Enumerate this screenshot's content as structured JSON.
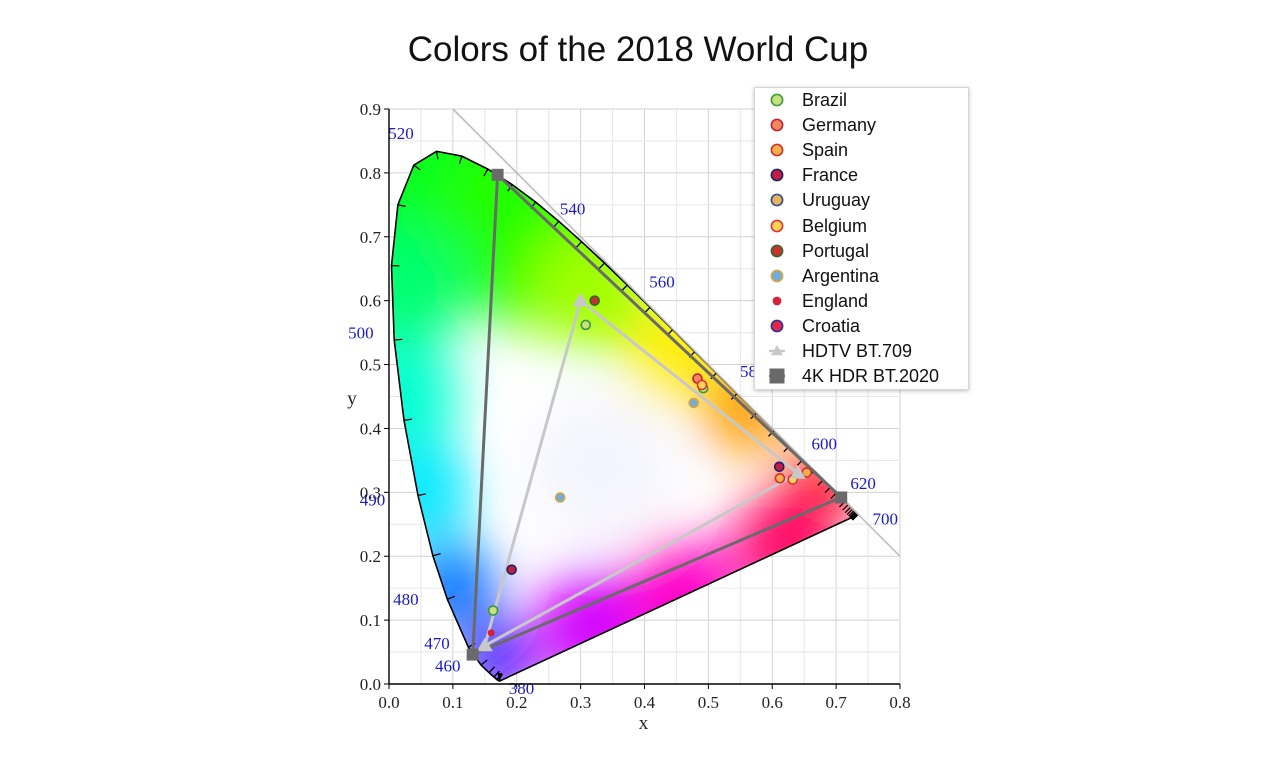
{
  "chart_data": {
    "type": "scatter",
    "title": "Colors of the 2018 World Cup",
    "xlabel": "x",
    "ylabel": "y",
    "xlim": [
      0.0,
      0.8
    ],
    "ylim": [
      0.0,
      0.9
    ],
    "grid": true,
    "legend_position": "top-right",
    "x_ticks": [
      "0.0",
      "0.1",
      "0.2",
      "0.3",
      "0.4",
      "0.5",
      "0.6",
      "0.7",
      "0.8"
    ],
    "y_ticks": [
      "0.0",
      "0.1",
      "0.2",
      "0.3",
      "0.4",
      "0.5",
      "0.6",
      "0.7",
      "0.8",
      "0.9"
    ],
    "wavelength_labels": [
      {
        "text": "380",
        "x": 0.175,
        "y": -0.003
      },
      {
        "text": "460",
        "x": 0.144,
        "y": 0.026
      },
      {
        "text": "470",
        "x": 0.124,
        "y": 0.058
      },
      {
        "text": "480",
        "x": 0.091,
        "y": 0.133
      },
      {
        "text": "490",
        "x": 0.045,
        "y": 0.295
      },
      {
        "text": "500",
        "x": 0.008,
        "y": 0.538
      },
      {
        "text": "520",
        "x": 0.074,
        "y": 0.834
      },
      {
        "text": "540",
        "x": 0.23,
        "y": 0.754
      },
      {
        "text": "560",
        "x": 0.373,
        "y": 0.624
      },
      {
        "text": "580",
        "x": 0.512,
        "y": 0.487
      },
      {
        "text": "600",
        "x": 0.627,
        "y": 0.373
      },
      {
        "text": "620",
        "x": 0.691,
        "y": 0.308
      },
      {
        "text": "700",
        "x": 0.735,
        "y": 0.265
      }
    ],
    "series": [
      {
        "name": "Brazil",
        "marker": "circle",
        "color": "#c9e080",
        "edge": "#3a9a3a",
        "points": [
          {
            "x": 0.308,
            "y": 0.562
          },
          {
            "x": 0.492,
            "y": 0.463
          },
          {
            "x": 0.163,
            "y": 0.115
          }
        ]
      },
      {
        "name": "Germany",
        "marker": "circle",
        "color": "#f08a5a",
        "edge": "#c0203a",
        "points": [
          {
            "x": 0.483,
            "y": 0.478
          }
        ]
      },
      {
        "name": "Spain",
        "marker": "circle",
        "color": "#f5b049",
        "edge": "#d02e2e",
        "points": [
          {
            "x": 0.612,
            "y": 0.322
          },
          {
            "x": 0.654,
            "y": 0.331
          }
        ]
      },
      {
        "name": "France",
        "marker": "circle",
        "color": "#c21e3f",
        "edge": "#1e1e66",
        "points": [
          {
            "x": 0.192,
            "y": 0.179
          },
          {
            "x": 0.611,
            "y": 0.34
          }
        ]
      },
      {
        "name": "Uruguay",
        "marker": "circle",
        "color": "#e6b45a",
        "edge": "#2b4a9a",
        "points": []
      },
      {
        "name": "Belgium",
        "marker": "circle",
        "color": "#ffd44f",
        "edge": "#e0303a",
        "points": [
          {
            "x": 0.49,
            "y": 0.468
          },
          {
            "x": 0.632,
            "y": 0.32
          }
        ]
      },
      {
        "name": "Portugal",
        "marker": "circle",
        "color": "#c8342c",
        "edge": "#2a6a2a",
        "points": [
          {
            "x": 0.322,
            "y": 0.6
          }
        ]
      },
      {
        "name": "Argentina",
        "marker": "circle",
        "color": "#74acd9",
        "edge": "#d9a63a",
        "points": [
          {
            "x": 0.268,
            "y": 0.292
          },
          {
            "x": 0.477,
            "y": 0.44
          }
        ]
      },
      {
        "name": "England",
        "marker": "circle-small",
        "color": "#d12237",
        "edge": "#d12237",
        "points": [
          {
            "x": 0.16,
            "y": 0.08
          }
        ]
      },
      {
        "name": "Croatia",
        "marker": "circle",
        "color": "#e02747",
        "edge": "#2e2e9e",
        "points": []
      },
      {
        "name": "HDTV BT.709",
        "marker": "triangle",
        "color": "#c8c8c8",
        "edge": "#c8c8c8",
        "points": [
          {
            "x": 0.64,
            "y": 0.33
          },
          {
            "x": 0.3,
            "y": 0.6
          },
          {
            "x": 0.15,
            "y": 0.06
          }
        ]
      },
      {
        "name": "4K HDR BT.2020",
        "marker": "square",
        "color": "#6a6a6a",
        "edge": "#6a6a6a",
        "points": [
          {
            "x": 0.708,
            "y": 0.292
          },
          {
            "x": 0.17,
            "y": 0.797
          },
          {
            "x": 0.131,
            "y": 0.046
          }
        ]
      }
    ]
  }
}
